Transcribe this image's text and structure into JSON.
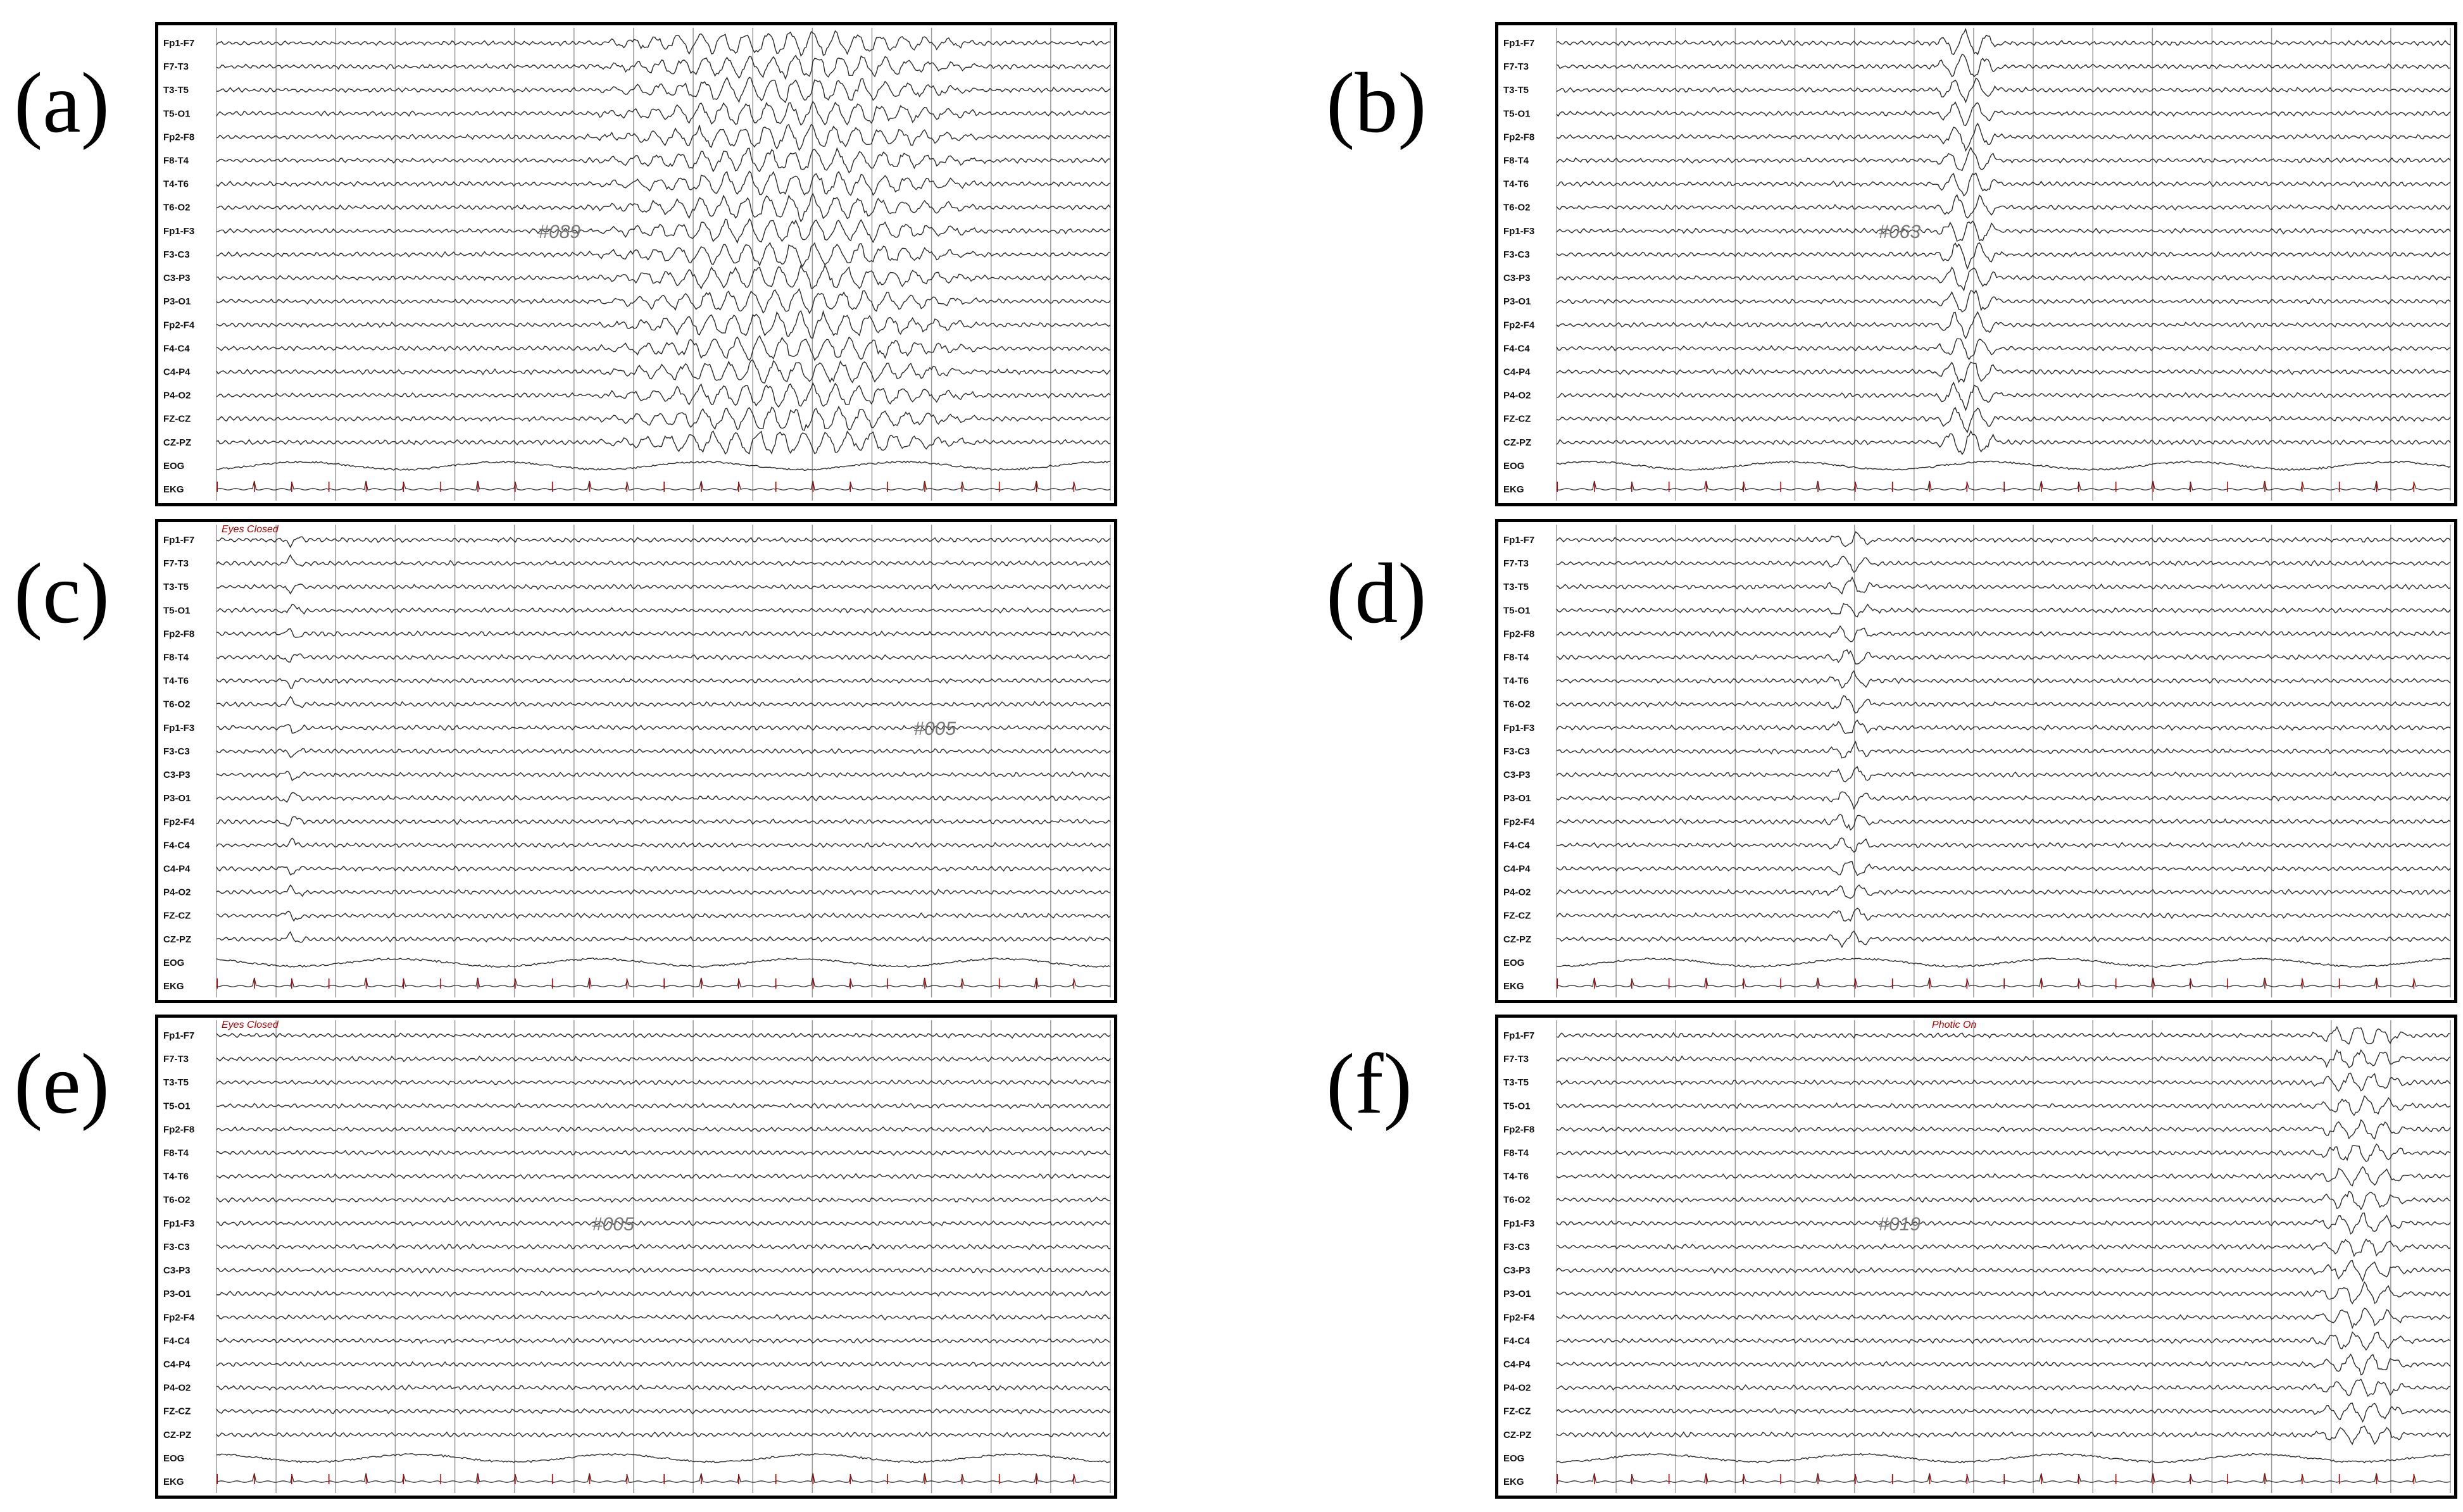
{
  "chart_data": [
    {
      "type": "line",
      "panel_label": "(a)",
      "record_id": "#089",
      "event_annotation": "",
      "channels": [
        "Fp1-F7",
        "F7-T3",
        "T3-T5",
        "T5-O1",
        "Fp2-F8",
        "F8-T4",
        "T4-T6",
        "T6-O2",
        "Fp1-F3",
        "F3-C3",
        "C3-P3",
        "P3-O1",
        "Fp2-F4",
        "F4-C4",
        "C4-P4",
        "P4-O2",
        "FZ-CZ",
        "CZ-PZ",
        "EOG",
        "EKG"
      ],
      "activity": "generalized rhythmic high-amplitude discharge",
      "burst_start_fraction": 0.41,
      "burst_end_fraction": 0.87,
      "burst_amplitude_scale": 5.0
    },
    {
      "type": "line",
      "panel_label": "(b)",
      "record_id": "#063",
      "event_annotation": "",
      "channels": [
        "Fp1-F7",
        "F7-T3",
        "T3-T5",
        "T5-O1",
        "Fp2-F8",
        "F8-T4",
        "T4-T6",
        "T6-O2",
        "Fp1-F3",
        "F3-C3",
        "C3-P3",
        "P3-O1",
        "Fp2-F4",
        "F4-C4",
        "C4-P4",
        "P4-O2",
        "FZ-CZ",
        "CZ-PZ",
        "EOG",
        "EKG"
      ],
      "activity": "brief generalized spike-wave burst",
      "burst_start_fraction": 0.42,
      "burst_end_fraction": 0.5,
      "burst_amplitude_scale": 5.5
    },
    {
      "type": "line",
      "panel_label": "(c)",
      "record_id": "#005",
      "event_annotation": "Eyes Closed",
      "channels": [
        "Fp1-F7",
        "F7-T3",
        "T3-T5",
        "T5-O1",
        "Fp2-F8",
        "F8-T4",
        "T4-T6",
        "T6-O2",
        "Fp1-F3",
        "F3-C3",
        "C3-P3",
        "P3-O1",
        "Fp2-F4",
        "F4-C4",
        "C4-P4",
        "P4-O2",
        "FZ-CZ",
        "CZ-PZ",
        "EOG",
        "EKG"
      ],
      "activity": "background rhythm after eye closure",
      "burst_start_fraction": 0.07,
      "burst_end_fraction": 0.1,
      "burst_amplitude_scale": 2.5
    },
    {
      "type": "line",
      "panel_label": "(d)",
      "record_id": "",
      "event_annotation": "",
      "channels": [
        "Fp1-F7",
        "F7-T3",
        "T3-T5",
        "T5-O1",
        "Fp2-F8",
        "F8-T4",
        "T4-T6",
        "T6-O2",
        "Fp1-F3",
        "F3-C3",
        "C3-P3",
        "P3-O1",
        "Fp2-F4",
        "F4-C4",
        "C4-P4",
        "P4-O2",
        "FZ-CZ",
        "CZ-PZ",
        "EOG",
        "EKG"
      ],
      "activity": "isolated generalized sharp-slow complex",
      "burst_start_fraction": 0.3,
      "burst_end_fraction": 0.36,
      "burst_amplitude_scale": 3.5
    },
    {
      "type": "line",
      "panel_label": "(e)",
      "record_id": "#005",
      "event_annotation": "Eyes Closed",
      "channels": [
        "Fp1-F7",
        "F7-T3",
        "T3-T5",
        "T5-O1",
        "Fp2-F8",
        "F8-T4",
        "T4-T6",
        "T6-O2",
        "Fp1-F3",
        "F3-C3",
        "C3-P3",
        "P3-O1",
        "Fp2-F4",
        "F4-C4",
        "C4-P4",
        "P4-O2",
        "FZ-CZ",
        "CZ-PZ",
        "EOG",
        "EKG"
      ],
      "activity": "normal background rhythm",
      "burst_start_fraction": 0.0,
      "burst_end_fraction": 0.0,
      "burst_amplitude_scale": 1.0
    },
    {
      "type": "line",
      "panel_label": "(f)",
      "record_id": "#019",
      "event_annotation": "Photic On",
      "channels": [
        "Fp1-F7",
        "F7-T3",
        "T3-T5",
        "T5-O1",
        "Fp2-F8",
        "F8-T4",
        "T4-T6",
        "T6-O2",
        "Fp1-F3",
        "F3-C3",
        "C3-P3",
        "P3-O1",
        "Fp2-F4",
        "F4-C4",
        "C4-P4",
        "P4-O2",
        "FZ-CZ",
        "CZ-PZ",
        "EOG",
        "EKG"
      ],
      "activity": "discharge onset near end of page",
      "burst_start_fraction": 0.84,
      "burst_end_fraction": 0.96,
      "burst_amplitude_scale": 4.0
    }
  ],
  "colors": {
    "trace": "#2a2a2a",
    "grid": "#9a9a9a",
    "event_marker": "#b00000"
  }
}
